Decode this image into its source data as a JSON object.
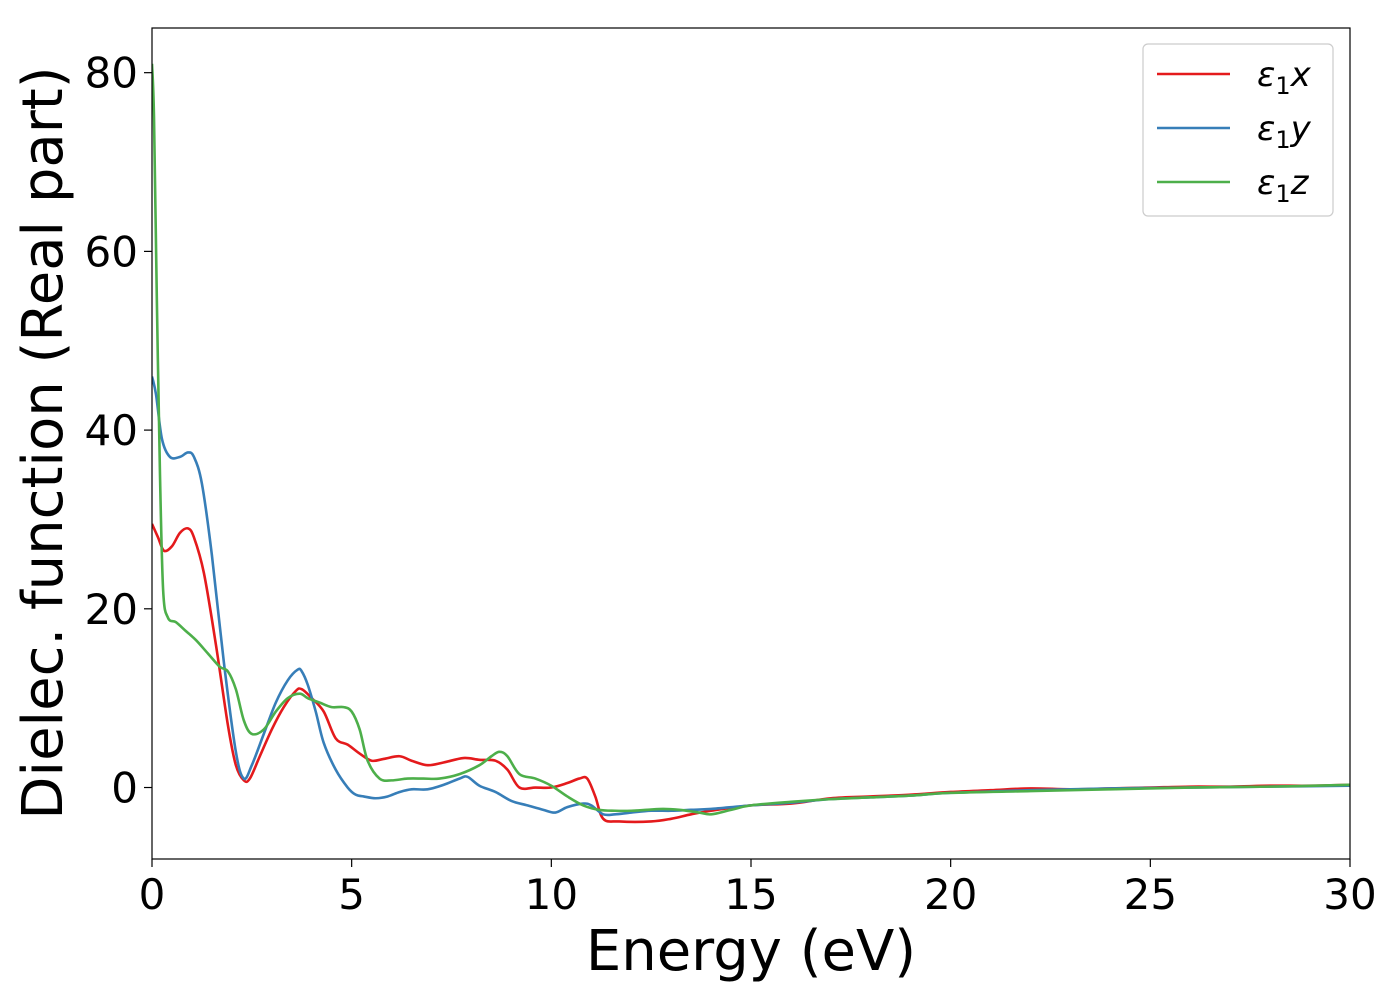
{
  "chart_data": {
    "type": "line",
    "xlabel": "Energy (eV)",
    "ylabel": "Dielec. function (Real part)",
    "xlim": [
      0,
      30
    ],
    "ylim": [
      -8,
      85
    ],
    "xticks": [
      0,
      5,
      10,
      15,
      20,
      25,
      30
    ],
    "yticks": [
      0,
      20,
      40,
      60,
      80
    ],
    "grid": false,
    "legend_position": "top-right",
    "series": [
      {
        "name": "ε1x",
        "label_base": "ε",
        "label_sub": "1",
        "label_suffix": "x",
        "color": "#e41a1c",
        "x": [
          0,
          0.15,
          0.3,
          0.5,
          0.7,
          0.9,
          1.05,
          1.3,
          1.6,
          1.9,
          2.1,
          2.3,
          2.45,
          2.7,
          3.0,
          3.3,
          3.6,
          3.75,
          4.0,
          4.3,
          4.6,
          4.9,
          5.2,
          5.5,
          5.8,
          6.2,
          6.5,
          6.9,
          7.3,
          7.8,
          8.2,
          8.6,
          8.9,
          9.2,
          9.6,
          10.0,
          10.4,
          10.7,
          10.9,
          11.1,
          11.3,
          11.7,
          12.5,
          13.0,
          13.5,
          14.0,
          15.0,
          16.0,
          17.0,
          18.0,
          19.0,
          20.0,
          21.0,
          22.0,
          23.0,
          24.0,
          25.0,
          26.0,
          27.0,
          28.0,
          29.0,
          30.0
        ],
        "y": [
          29.5,
          28.0,
          26.5,
          27.0,
          28.5,
          29.0,
          28.0,
          24.0,
          16.0,
          7.0,
          2.5,
          0.8,
          1.0,
          3.5,
          6.5,
          9.0,
          10.8,
          11.0,
          10.0,
          8.5,
          5.5,
          4.8,
          3.8,
          3.0,
          3.2,
          3.5,
          3.0,
          2.5,
          2.8,
          3.3,
          3.1,
          3.0,
          2.0,
          0.0,
          0.0,
          0.0,
          0.5,
          1.0,
          1.0,
          -1.0,
          -3.5,
          -3.8,
          -3.8,
          -3.5,
          -3.0,
          -2.6,
          -2.0,
          -1.8,
          -1.2,
          -1.0,
          -0.8,
          -0.5,
          -0.3,
          -0.1,
          -0.2,
          -0.1,
          0.0,
          0.1,
          0.1,
          0.2,
          0.2,
          0.3
        ]
      },
      {
        "name": "ε1y",
        "label_base": "ε",
        "label_sub": "1",
        "label_suffix": "y",
        "color": "#377eb8",
        "x": [
          0,
          0.1,
          0.25,
          0.45,
          0.7,
          0.9,
          1.05,
          1.25,
          1.5,
          1.8,
          2.1,
          2.3,
          2.5,
          2.8,
          3.1,
          3.4,
          3.65,
          3.75,
          3.9,
          4.1,
          4.3,
          4.6,
          4.9,
          5.1,
          5.3,
          5.6,
          5.9,
          6.2,
          6.5,
          6.9,
          7.3,
          7.7,
          7.9,
          8.2,
          8.6,
          9.0,
          9.4,
          9.8,
          10.1,
          10.4,
          10.8,
          11.0,
          11.3,
          11.6,
          12.0,
          12.5,
          13.0,
          13.5,
          14.0,
          15.0,
          16.0,
          17.0,
          18.0,
          19.0,
          20.0,
          22.0,
          24.0,
          26.0,
          28.0,
          30.0
        ],
        "y": [
          46.0,
          44.0,
          39.0,
          37.0,
          37.0,
          37.5,
          37.0,
          34.0,
          26.0,
          14.0,
          4.0,
          1.0,
          2.5,
          6.0,
          9.5,
          12.0,
          13.2,
          13.0,
          11.5,
          8.5,
          5.0,
          2.0,
          0.0,
          -0.8,
          -1.0,
          -1.2,
          -1.0,
          -0.5,
          -0.2,
          -0.2,
          0.3,
          1.0,
          1.2,
          0.2,
          -0.5,
          -1.5,
          -2.0,
          -2.5,
          -2.8,
          -2.2,
          -1.8,
          -2.0,
          -3.0,
          -3.0,
          -2.8,
          -2.6,
          -2.6,
          -2.5,
          -2.4,
          -2.0,
          -1.7,
          -1.3,
          -1.1,
          -0.9,
          -0.6,
          -0.3,
          -0.1,
          0.0,
          0.1,
          0.2
        ]
      },
      {
        "name": "ε1z",
        "label_base": "ε",
        "label_sub": "1",
        "label_suffix": "z",
        "color": "#4daf4a",
        "x": [
          0,
          0.05,
          0.12,
          0.2,
          0.28,
          0.4,
          0.6,
          0.85,
          1.1,
          1.4,
          1.7,
          1.9,
          2.1,
          2.3,
          2.5,
          2.8,
          3.1,
          3.4,
          3.7,
          3.9,
          4.2,
          4.5,
          4.8,
          5.0,
          5.2,
          5.4,
          5.7,
          6.0,
          6.4,
          6.8,
          7.2,
          7.7,
          8.2,
          8.5,
          8.7,
          8.9,
          9.2,
          9.6,
          10.0,
          10.4,
          10.8,
          11.2,
          11.6,
          12.0,
          12.4,
          12.8,
          13.2,
          13.7,
          14.0,
          14.5,
          15.0,
          16.0,
          17.0,
          18.0,
          19.0,
          20.0,
          22.0,
          24.0,
          26.0,
          28.0,
          30.0
        ],
        "y": [
          81.0,
          75.0,
          55.0,
          35.0,
          22.0,
          19.0,
          18.5,
          17.5,
          16.5,
          15.0,
          13.5,
          13.0,
          11.0,
          7.5,
          6.0,
          6.5,
          8.5,
          10.0,
          10.5,
          10.0,
          9.5,
          9.0,
          9.0,
          8.5,
          6.5,
          3.0,
          1.0,
          0.8,
          1.0,
          1.0,
          1.0,
          1.5,
          2.5,
          3.5,
          4.0,
          3.5,
          1.5,
          1.0,
          0.2,
          -1.0,
          -2.0,
          -2.5,
          -2.6,
          -2.6,
          -2.5,
          -2.4,
          -2.5,
          -2.8,
          -3.0,
          -2.5,
          -2.0,
          -1.6,
          -1.3,
          -1.1,
          -0.9,
          -0.6,
          -0.4,
          -0.2,
          0.0,
          0.1,
          0.3
        ]
      }
    ]
  }
}
